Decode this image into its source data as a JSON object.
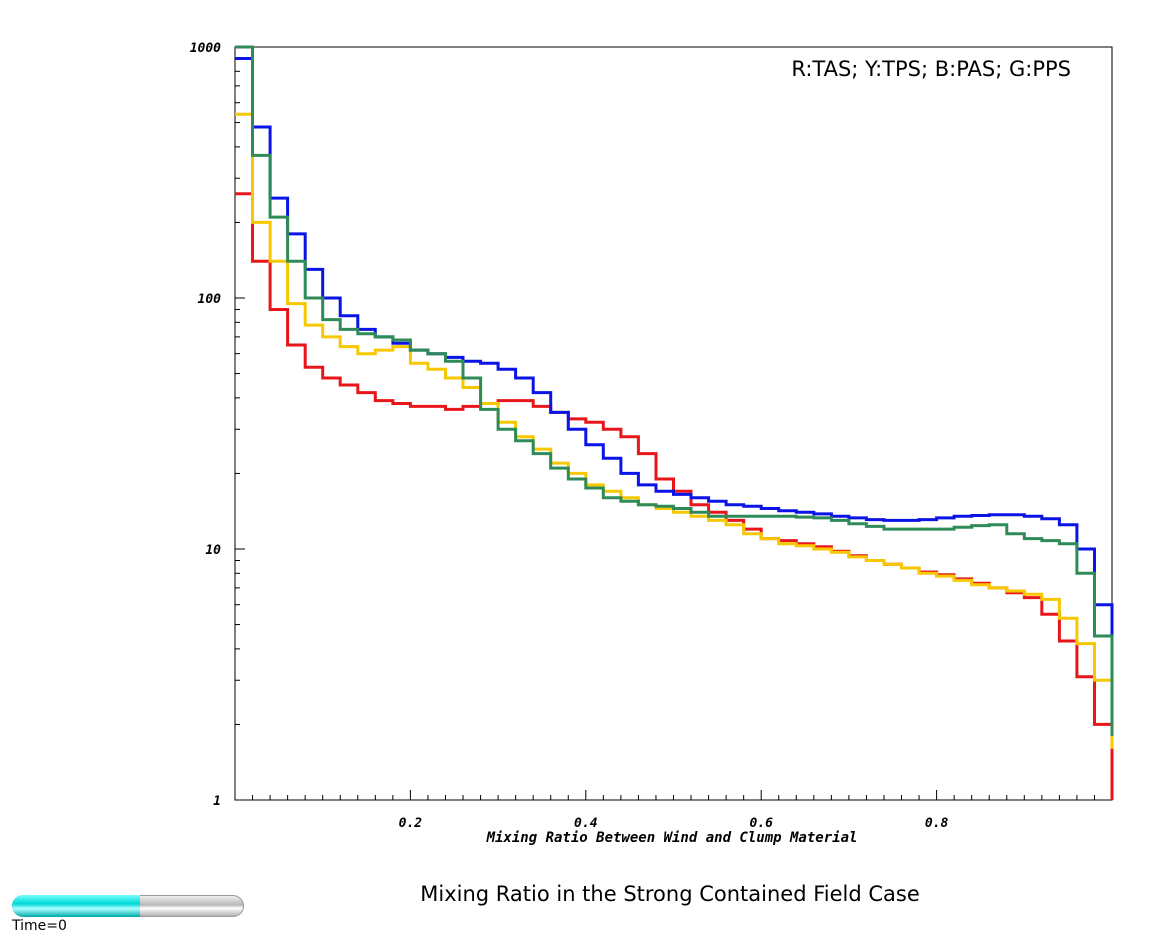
{
  "chart_data": {
    "type": "line",
    "step": true,
    "xlabel": "Mixing Ratio Between Wind and Clump Material",
    "ylabel": "",
    "xlim": [
      0,
      1
    ],
    "ylim": [
      1,
      1000
    ],
    "yscale": "log",
    "x_ticks": [
      "0.2",
      "0.4",
      "0.6",
      "0.8"
    ],
    "y_ticks": [
      "1",
      "10",
      "100",
      "1000"
    ],
    "legend_text": "R:TAS; Y:TPS; B:PAS; G:PPS",
    "legend_position": "top-right",
    "x": [
      0.0,
      0.02,
      0.04,
      0.06,
      0.08,
      0.1,
      0.12,
      0.14,
      0.16,
      0.18,
      0.2,
      0.22,
      0.24,
      0.26,
      0.28,
      0.3,
      0.32,
      0.34,
      0.36,
      0.38,
      0.4,
      0.42,
      0.44,
      0.46,
      0.48,
      0.5,
      0.52,
      0.54,
      0.56,
      0.58,
      0.6,
      0.62,
      0.64,
      0.66,
      0.68,
      0.7,
      0.72,
      0.74,
      0.76,
      0.78,
      0.8,
      0.82,
      0.84,
      0.86,
      0.88,
      0.9,
      0.92,
      0.94,
      0.96,
      0.98,
      1.0
    ],
    "series": [
      {
        "name": "R:TAS",
        "color": "#e8161b",
        "values": [
          260,
          140,
          90,
          65,
          53,
          48,
          45,
          42,
          39,
          38,
          37,
          37,
          36,
          37,
          38,
          39,
          39,
          37,
          35,
          33,
          32,
          30,
          28,
          24,
          19,
          17,
          15,
          14,
          13,
          12,
          11,
          10.8,
          10.5,
          10.2,
          9.8,
          9.4,
          9.0,
          8.7,
          8.4,
          8.1,
          7.9,
          7.6,
          7.3,
          7.0,
          6.7,
          6.4,
          5.5,
          4.3,
          3.1,
          2.0,
          1.0
        ]
      },
      {
        "name": "Y:TPS",
        "color": "#f7c800",
        "values": [
          540,
          200,
          140,
          95,
          78,
          70,
          64,
          60,
          62,
          64,
          55,
          52,
          48,
          44,
          38,
          32,
          28,
          25,
          22,
          20,
          18,
          17,
          16,
          15,
          14.5,
          14,
          13.5,
          13,
          12.5,
          11.5,
          11,
          10.5,
          10.3,
          10,
          9.7,
          9.3,
          9.0,
          8.7,
          8.4,
          8.0,
          7.8,
          7.5,
          7.2,
          7.0,
          6.8,
          6.6,
          6.3,
          5.3,
          4.2,
          3.0,
          1.6
        ]
      },
      {
        "name": "B:PAS",
        "color": "#0a14e6",
        "values": [
          900,
          480,
          250,
          180,
          130,
          100,
          85,
          75,
          70,
          66,
          62,
          60,
          58,
          56,
          55,
          52,
          48,
          42,
          35,
          30,
          26,
          23,
          20,
          18,
          17,
          16.5,
          16,
          15.5,
          15,
          14.8,
          14.5,
          14.2,
          14,
          13.8,
          13.5,
          13.3,
          13.1,
          13,
          13,
          13.1,
          13.3,
          13.5,
          13.6,
          13.7,
          13.7,
          13.5,
          13.2,
          12.5,
          10,
          6,
          2.8
        ]
      },
      {
        "name": "G:PPS",
        "color": "#2e8b57",
        "values": [
          1000,
          370,
          210,
          140,
          100,
          82,
          75,
          72,
          70,
          68,
          62,
          60,
          56,
          48,
          36,
          30,
          27,
          24,
          21,
          19,
          17.5,
          16,
          15.5,
          15,
          14.8,
          14.5,
          14,
          13.5,
          13.5,
          13.5,
          13.5,
          13.5,
          13.4,
          13.3,
          13,
          12.6,
          12.3,
          12,
          12,
          12,
          12,
          12.2,
          12.4,
          12.5,
          11.5,
          11.0,
          10.8,
          10.5,
          8,
          4.5,
          1.8
        ]
      }
    ]
  },
  "caption": "Mixing Ratio in the Strong Contained Field Case",
  "time_slider": {
    "label": "Time=0",
    "progress": 0.55
  }
}
